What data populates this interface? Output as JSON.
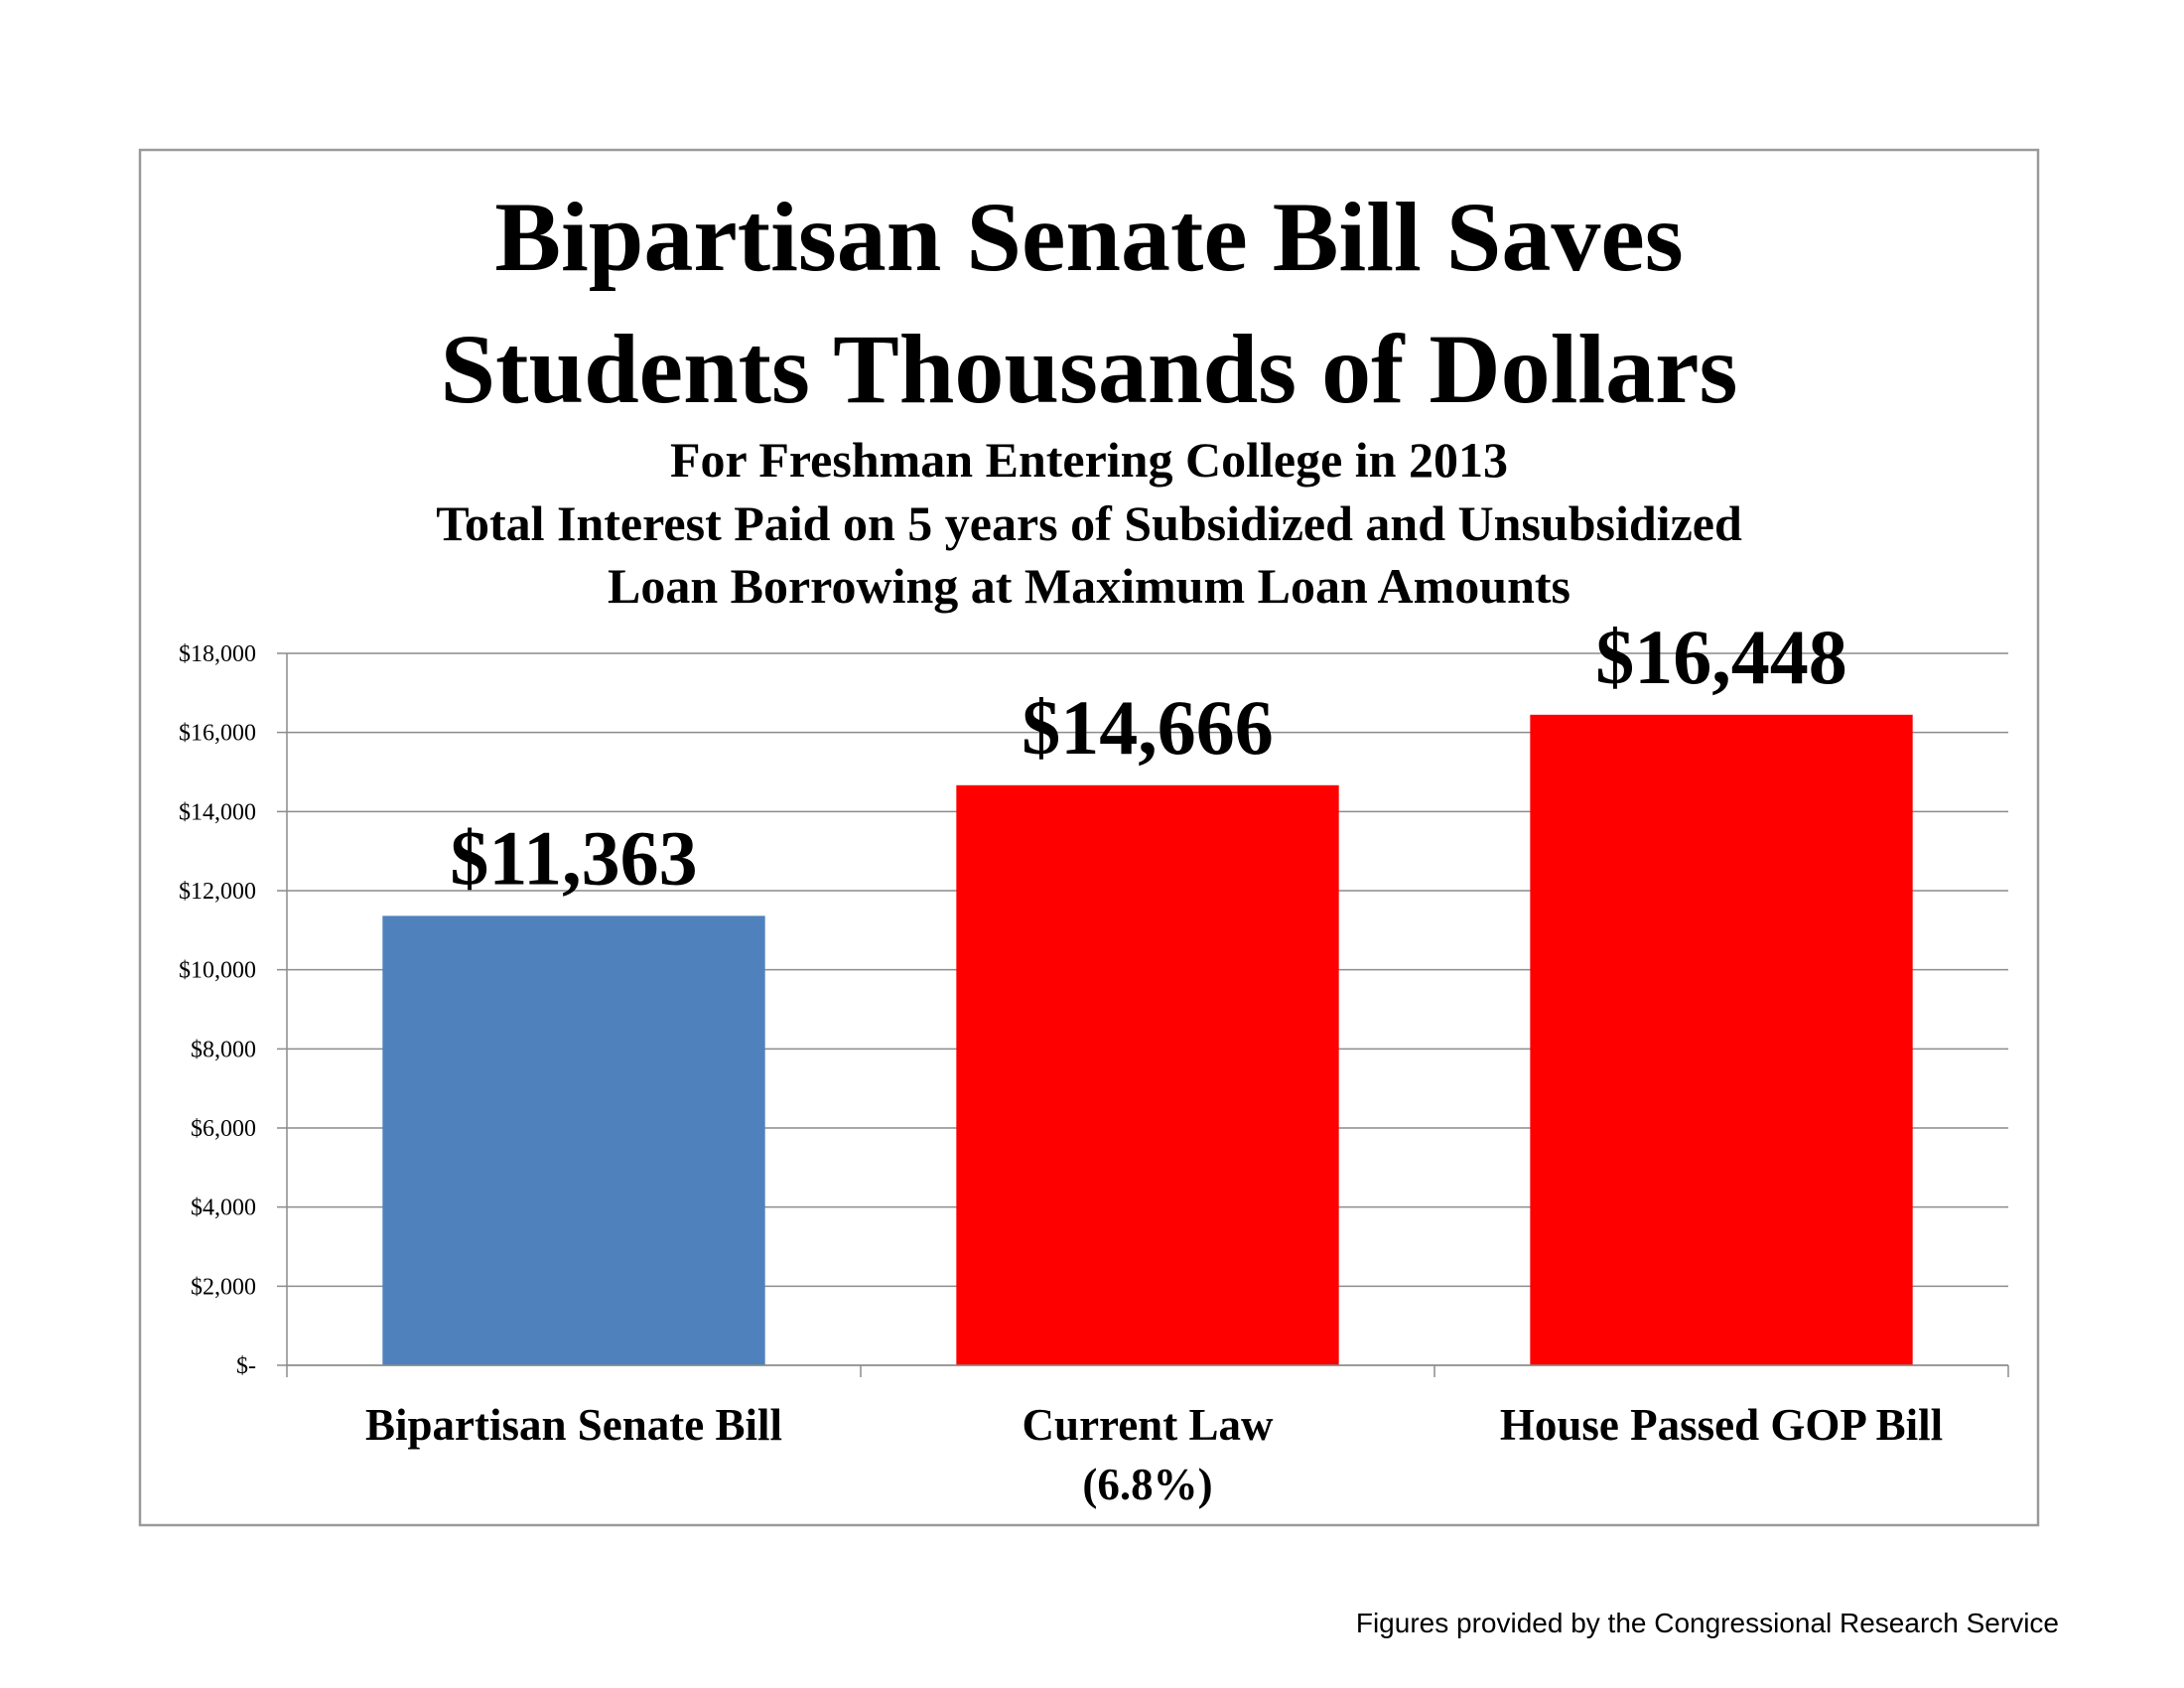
{
  "chart_data": {
    "type": "bar",
    "title": [
      "Bipartisan Senate Bill Saves",
      "Students Thousands of Dollars"
    ],
    "subtitle": [
      "For Freshman Entering College in 2013",
      "Total Interest Paid on 5 years of Subsidized and Unsubsidized",
      "Loan Borrowing at Maximum Loan Amounts"
    ],
    "categories": [
      "Bipartisan Senate Bill",
      "Current Law\n(6.8%)",
      "House Passed GOP Bill"
    ],
    "values": [
      11363,
      14666,
      16448
    ],
    "value_labels": [
      "$11,363",
      "$14,666",
      "$16,448"
    ],
    "colors": [
      "#4f81bd",
      "#ff0000",
      "#ff0000"
    ],
    "ylim": [
      0,
      18000
    ],
    "yticks": [
      {
        "value": 0,
        "label": "$-"
      },
      {
        "value": 2000,
        "label": "$2,000"
      },
      {
        "value": 4000,
        "label": "$4,000"
      },
      {
        "value": 6000,
        "label": "$6,000"
      },
      {
        "value": 8000,
        "label": "$8,000"
      },
      {
        "value": 10000,
        "label": "$10,000"
      },
      {
        "value": 12000,
        "label": "$12,000"
      },
      {
        "value": 14000,
        "label": "$14,000"
      },
      {
        "value": 16000,
        "label": "$16,000"
      },
      {
        "value": 18000,
        "label": "$18,000"
      }
    ],
    "grid": true,
    "note": "Figures provided by the Congressional Research Service"
  }
}
